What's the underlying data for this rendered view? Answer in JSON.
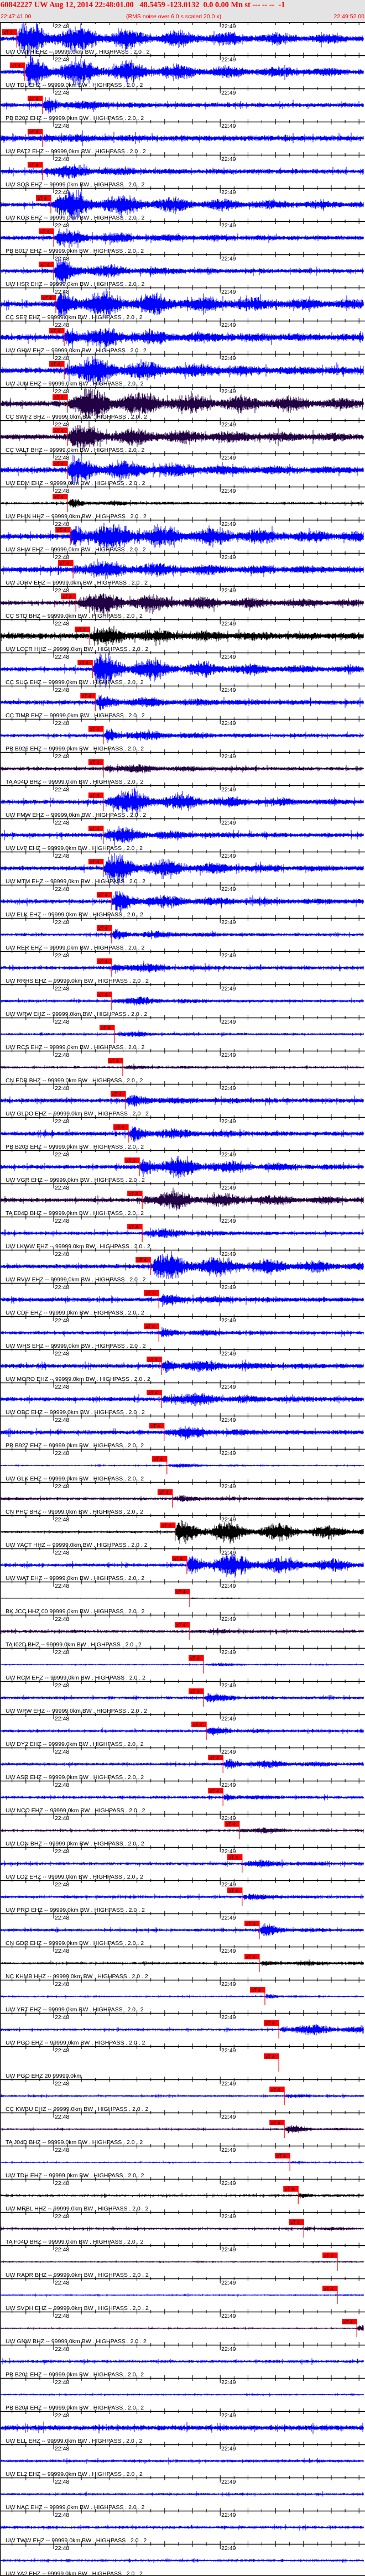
{
  "header": {
    "title": "60842227 UW Aug 12, 2014 22:48:01.00   48.5459 -123.0132  0.0 0.00 Mn st --- -- --  -1",
    "start_time": "22:47:41.00",
    "note": "(RMS noise over 6.0 s scaled 20.0 x)",
    "end_time": "22:49:52.00"
  },
  "colors": {
    "header_bg": "#e4e4e4",
    "title": "#ff0000",
    "pick": "#ff0000",
    "blue": "#0000ff",
    "purple": "#220044",
    "black": "#000000"
  },
  "chart_data": {
    "type": "seismogram record section",
    "x_range": [
      "22:47:41.00",
      "22:49:52.00"
    ],
    "time_ticks": [
      "22:48",
      "22:49"
    ],
    "pick_label": "xT 4",
    "traces": [
      {
        "label": "UW UWFH EHZ -- 99999.0km BW . HIGHPASS . 2.0 . 2",
        "color": "blue",
        "pick": "22:47:46.7",
        "noise": 0.15,
        "event": 1.0,
        "dur": 70
      },
      {
        "label": "UW TDL EHZ -- 99999.0km BW . HIGHPASS . 2.0 . 2",
        "color": "blue",
        "pick": "22:47:49.6",
        "noise": 0.15,
        "event": 1.0,
        "dur": 60
      },
      {
        "label": "PB B202 EHZ -- 99999.0km BW . HIGHPASS . 2.0 . 2",
        "color": "blue",
        "pick": "22:47:56.0",
        "noise": 0.15,
        "event": 0.6,
        "dur": 15
      },
      {
        "label": "UW PAT2 EHZ -- 99999.0km BW . HIGHPASS . 2.0 . 2",
        "color": "blue",
        "pick": "22:47:56.0",
        "noise": 0.2,
        "event": 0.2,
        "dur": 20
      },
      {
        "label": "UW SQS EHZ -- 99999.0km BW . HIGHPASS . 2.0 . 2",
        "color": "blue",
        "pick": "22:47:56.0",
        "noise": 0.15,
        "event": 0.6,
        "dur": 20
      },
      {
        "label": "UW KOS EHZ -- 99999.0km BW . HIGHPASS . 2.0 . 2",
        "color": "blue",
        "pick": "22:47:59.0",
        "noise": 0.15,
        "event": 1.0,
        "dur": 50
      },
      {
        "label": "PB B017 EHZ -- 99999.0km BW . HIGHPASS . 2.0 . 2",
        "color": "blue",
        "pick": "22:48:00.0",
        "noise": 0.15,
        "event": 0.5,
        "dur": 30
      },
      {
        "label": "UW HSR EHZ -- 99999.0km BW . HIGHPASS . 2.0 . 2",
        "color": "blue",
        "pick": "22:48:00.0",
        "noise": 0.15,
        "event": 0.8,
        "dur": 20
      },
      {
        "label": "CC SEP EHZ -- 99999.0km BW . HIGHPASS . 2.0 . 2",
        "color": "blue",
        "pick": "22:48:00.8",
        "noise": 0.2,
        "event": 1.0,
        "dur": 60
      },
      {
        "label": "UW GHW EHZ -- 99999.0km BW . HIGHPASS . 2.0 . 2",
        "color": "blue",
        "pick": "22:48:03.8",
        "noise": 0.2,
        "event": 0.7,
        "dur": 40
      },
      {
        "label": "UW JUN EHZ -- 99999.0km BW . HIGHPASS . 2.0 . 2",
        "color": "blue",
        "pick": "22:48:03.8",
        "noise": 0.2,
        "event": 1.0,
        "dur": 40
      },
      {
        "label": "CC SWF2 BHZ -- 99999.0km BW . HIGHPASS . 2.0 . 2",
        "color": "purple",
        "pick": "22:48:05.0",
        "noise": 0.2,
        "event": 1.0,
        "dur": 70
      },
      {
        "label": "CC VALT BHZ -- 99999.0km BW . HIGHPASS . 2.0 . 2",
        "color": "purple",
        "pick": "22:48:05.0",
        "noise": 0.2,
        "event": 0.7,
        "dur": 50
      },
      {
        "label": "UW EDM EHZ -- 99999.0km BW . HIGHPASS . 2.0 . 2",
        "color": "blue",
        "pick": "22:48:05.0",
        "noise": 0.2,
        "event": 0.8,
        "dur": 40
      },
      {
        "label": "UW PHIN HHZ -- 99999.0km BW . HIGHPASS . 2.0 . 2",
        "color": "black",
        "pick": "22:48:05.0",
        "noise": 0.08,
        "event": 0.3,
        "dur": 15
      },
      {
        "label": "UW SHW EHZ -- 99999.0km BW . HIGHPASS . 2.0 . 2",
        "color": "blue",
        "pick": "22:48:06.0",
        "noise": 0.2,
        "event": 1.0,
        "dur": 60
      },
      {
        "label": "UW JORV EHZ -- 99999.0km BW . HIGHPASS . 2.0 . 2",
        "color": "blue",
        "pick": "22:48:07.0",
        "noise": 0.2,
        "event": 0.6,
        "dur": 40
      },
      {
        "label": "CC STD BHZ -- 99999.0km BW . HIGHPASS . 2.0 . 2",
        "color": "purple",
        "pick": "22:48:08.0",
        "noise": 0.15,
        "event": 0.8,
        "dur": 50
      },
      {
        "label": "UW LCCR HHZ -- 99999.0km BW . HIGHPASS . 2.0 . 2",
        "color": "black",
        "pick": "22:48:13.0",
        "noise": 0.2,
        "event": 0.5,
        "dur": 40
      },
      {
        "label": "CC SUG EHZ -- 99999.0km BW . HIGHPASS . 2.0 . 2",
        "color": "blue",
        "pick": "22:48:14.0",
        "noise": 0.15,
        "event": 1.0,
        "dur": 40
      },
      {
        "label": "CC TIMB EHZ -- 99999.0km BW . HIGHPASS . 2.0 . 2",
        "color": "blue",
        "pick": "22:48:15.0",
        "noise": 0.15,
        "event": 0.4,
        "dur": 30
      },
      {
        "label": "PB B926 EHZ -- 99999.0km BW . HIGHPASS . 2.0 . 2",
        "color": "blue",
        "pick": "22:48:17.9",
        "noise": 0.12,
        "event": 0.5,
        "dur": 20
      },
      {
        "label": "TA A04D BHZ -- 99999.0km BW . HIGHPASS . 2.0 . 2",
        "color": "purple",
        "pick": "22:48:17.9",
        "noise": 0.12,
        "event": 0.4,
        "dur": 20
      },
      {
        "label": "UW FMW EHZ -- 99999.0km BW . HIGHPASS . 2.0 . 2",
        "color": "blue",
        "pick": "22:48:17.9",
        "noise": 0.15,
        "event": 1.0,
        "dur": 30
      },
      {
        "label": "UW LVP EHZ -- 99999.0km BW . HIGHPASS . 2.0 . 2",
        "color": "blue",
        "pick": "22:48:17.9",
        "noise": 0.15,
        "event": 0.6,
        "dur": 20
      },
      {
        "label": "UW MTM EHZ -- 99999.0km BW . HIGHPASS . 2.0 . 2",
        "color": "blue",
        "pick": "22:48:17.9",
        "noise": 0.15,
        "event": 1.0,
        "dur": 30
      },
      {
        "label": "UW ELK EHZ -- 99999.0km BW . HIGHPASS . 2.0 . 2",
        "color": "blue",
        "pick": "22:48:20.9",
        "noise": 0.15,
        "event": 0.6,
        "dur": 30
      },
      {
        "label": "UW RER EHZ -- 99999.0km BW . HIGHPASS . 2.0 . 2",
        "color": "blue",
        "pick": "22:48:20.9",
        "noise": 0.1,
        "event": 0.4,
        "dur": 20
      },
      {
        "label": "UW RRHS EHZ -- 99999.0km BW . HIGHPASS . 2.0 . 2",
        "color": "blue",
        "pick": "22:48:20.9",
        "noise": 0.12,
        "event": 0.5,
        "dur": 15
      },
      {
        "label": "UW WRW EHZ -- 99999.0km BW . HIGHPASS . 2.0 . 2",
        "color": "blue",
        "pick": "22:48:20.9",
        "noise": 0.1,
        "event": 0.4,
        "dur": 15
      },
      {
        "label": "UW RCS EHZ -- 99999.0km BW . HIGHPASS . 2.0 . 2",
        "color": "blue",
        "pick": "22:48:21.9",
        "noise": 0.08,
        "event": 0.2,
        "dur": 15
      },
      {
        "label": "CN EDB BHZ -- 99999.0km BW . HIGHPASS . 2.0 . 2",
        "color": "purple",
        "pick": "22:48:24.9",
        "noise": 0.08,
        "event": 0.1,
        "dur": 15
      },
      {
        "label": "UW GLDO EHZ -- 99999.0km BW . HIGHPASS . 2.0 . 2",
        "color": "blue",
        "pick": "22:48:25.9",
        "noise": 0.15,
        "event": 0.3,
        "dur": 20
      },
      {
        "label": "PB B203 EHZ -- 99999.0km BW . HIGHPASS . 2.0 . 2",
        "color": "blue",
        "pick": "22:48:26.9",
        "noise": 0.15,
        "event": 0.5,
        "dur": 20
      },
      {
        "label": "UW VGR EHZ -- 99999.0km BW . HIGHPASS . 2.0 . 2",
        "color": "blue",
        "pick": "22:48:30.9",
        "noise": 0.15,
        "event": 1.0,
        "dur": 25
      },
      {
        "label": "TA E04D BHZ -- 99999.0km BW . HIGHPASS . 2.0 . 2",
        "color": "purple",
        "pick": "22:48:31.9",
        "noise": 0.15,
        "event": 0.7,
        "dur": 40
      },
      {
        "label": "UW LKWW EHZ -- 99999.0km BW . HIGHPASS . 2.0 . 2",
        "color": "blue",
        "pick": "22:48:31.9",
        "noise": 0.12,
        "event": 0.4,
        "dur": 15
      },
      {
        "label": "UW RVW EHZ -- 99999.0km BW . HIGHPASS . 2.0 . 2",
        "color": "blue",
        "pick": "22:48:34.9",
        "noise": 0.15,
        "event": 0.9,
        "dur": 50
      },
      {
        "label": "UW CDF EHZ -- 99999.0km BW . HIGHPASS . 2.0 . 2",
        "color": "blue",
        "pick": "22:48:37.9",
        "noise": 0.15,
        "event": 0.3,
        "dur": 20
      },
      {
        "label": "UW WHS EHZ -- 99999.0km BW . HIGHPASS . 2.0 . 2",
        "color": "blue",
        "pick": "22:48:37.9",
        "noise": 0.12,
        "event": 0.3,
        "dur": 15
      },
      {
        "label": "UW MORO EHZ -- 99999.0km BW . HIGHPASS . 2.0 . 2",
        "color": "blue",
        "pick": "22:48:38.9",
        "noise": 0.15,
        "event": 0.5,
        "dur": 25
      },
      {
        "label": "UW OBC EHZ -- 99999.0km BW . HIGHPASS . 2.0 . 2",
        "color": "blue",
        "pick": "22:48:38.9",
        "noise": 0.15,
        "event": 0.5,
        "dur": 25
      },
      {
        "label": "PB B927 EHZ -- 99999.0km BW . HIGHPASS . 2.0 . 2",
        "color": "blue",
        "pick": "22:48:39.8",
        "noise": 0.15,
        "event": 0.5,
        "dur": 15
      },
      {
        "label": "UW GLK EHZ -- 99999.0km BW . HIGHPASS . 2.0 . 2",
        "color": "blue",
        "pick": "22:48:40.8",
        "noise": 0.05,
        "event": 0.15,
        "dur": 15
      },
      {
        "label": "CN PHC BHZ -- 99999.0km BW . HIGHPASS . 2.0 . 2",
        "color": "purple",
        "pick": "22:48:42.8",
        "noise": 0.1,
        "event": 0.15,
        "dur": 20
      },
      {
        "label": "UW YACT HHZ -- 99999.0km BW . HIGHPASS . 2.0 . 2",
        "color": "black",
        "pick": "22:48:43.8",
        "noise": 0.08,
        "event": 0.8,
        "dur": 70
      },
      {
        "label": "UW WAT EHZ -- 99999.0km BW . HIGHPASS . 2.0 . 2",
        "color": "blue",
        "pick": "22:48:48.0",
        "noise": 0.12,
        "event": 0.9,
        "dur": 50
      },
      {
        "label": "BK JCC HHZ 00 99999.0km BW . HIGHPASS . 2.0 . 2",
        "color": "black",
        "pick": "22:48:49.0",
        "noise": 0.02,
        "event": 0.1,
        "dur": 10
      },
      {
        "label": "TA I02D BHZ -- 99999.0km BW . HIGHPASS . 2.0 . 2",
        "color": "purple",
        "pick": "22:48:49.0",
        "noise": 0.1,
        "event": 0.1,
        "dur": 15
      },
      {
        "label": "UW RCM EHZ -- 99999.0km BW . HIGHPASS . 2.0 . 2",
        "color": "blue",
        "pick": "22:48:54.0",
        "noise": 0.05,
        "event": 0.1,
        "dur": 15
      },
      {
        "label": "UW WPW EHZ -- 99999.0km BW . HIGHPASS . 2.0 . 2",
        "color": "blue",
        "pick": "22:48:54.0",
        "noise": 0.1,
        "event": 0.3,
        "dur": 10
      },
      {
        "label": "UW DY2 EHZ -- 99999.0km BW . HIGHPASS . 2.0 . 2",
        "color": "blue",
        "pick": "22:48:55.0",
        "noise": 0.1,
        "event": 0.3,
        "dur": 10
      },
      {
        "label": "UW ASR EHZ -- 99999.0km BW . HIGHPASS . 2.0 . 2",
        "color": "blue",
        "pick": "22:49:01.0",
        "noise": 0.1,
        "event": 0.3,
        "dur": 30
      },
      {
        "label": "UW NCO EHZ -- 99999.0km BW . HIGHPASS . 2.0 . 2",
        "color": "blue",
        "pick": "22:49:01.0",
        "noise": 0.1,
        "event": 0.3,
        "dur": 10
      },
      {
        "label": "UW LON BHZ -- 99999.0km BW . HIGHPASS . 2.0 . 2",
        "color": "purple",
        "pick": "22:49:06.9",
        "noise": 0.08,
        "event": 0.35,
        "dur": 10
      },
      {
        "label": "UW LO2 EHZ -- 99999.0km BW . HIGHPASS . 2.0 . 2",
        "color": "blue",
        "pick": "22:49:07.9",
        "noise": 0.1,
        "event": 0.3,
        "dur": 15
      },
      {
        "label": "UW PRO EHZ -- 99999.0km BW . HIGHPASS . 2.0 . 2",
        "color": "blue",
        "pick": "22:49:07.9",
        "noise": 0.1,
        "event": 0.2,
        "dur": 10
      },
      {
        "label": "CN GDR EHZ -- 99999.0km BW . HIGHPASS . 2.0 . 2",
        "color": "blue",
        "pick": "22:49:14.1",
        "noise": 0.1,
        "event": 0.4,
        "dur": 10
      },
      {
        "label": "NC KHMB HHZ -- 99999.0km BW . HIGHPASS . 2.0 . 2",
        "color": "black",
        "pick": "22:49:14.1",
        "noise": 0.08,
        "event": 0.15,
        "dur": 30
      },
      {
        "label": "UW YRT EHZ -- 99999.0km BW . HIGHPASS . 2.0 . 2",
        "color": "blue",
        "pick": "22:49:16.1",
        "noise": 0.06,
        "event": 0.3,
        "dur": 5
      },
      {
        "label": "UW PGO EHZ -- 99999.0km BW . HIGHPASS . 2.0 . 2",
        "color": "blue",
        "pick": "22:49:21.1",
        "noise": 0.08,
        "event": 0.4,
        "dur": 40
      },
      {
        "label": "UW PGO EHZ 20 99999.0km",
        "color": "none",
        "pick": "22:49:21.1",
        "noise": 0,
        "event": 0,
        "dur": 0
      },
      {
        "label": "CC KWBU EHZ -- 99999.0km BW . HIGHPASS . 2.0 . 2",
        "color": "blue",
        "pick": "22:49:23.1",
        "noise": 0.07,
        "event": 0.1,
        "dur": 10
      },
      {
        "label": "TA J04D BHZ -- 99999.0km BW . HIGHPASS . 2.0 . 2",
        "color": "purple",
        "pick": "22:49:23.1",
        "noise": 0.06,
        "event": 0.3,
        "dur": 10
      },
      {
        "label": "UW TDH EHZ -- 99999.0km BW . HIGHPASS . 2.0 . 2",
        "color": "blue",
        "pick": "22:49:25.1",
        "noise": 0.05,
        "event": 0.05,
        "dur": 10
      },
      {
        "label": "UW MRBL HHZ -- 99999.0km BW . HIGHPASS . 2.0 . 2",
        "color": "black",
        "pick": "22:49:28.1",
        "noise": 0.08,
        "event": 0.15,
        "dur": 10
      },
      {
        "label": "TA F04D BHZ -- 99999.0km BW . HIGHPASS . 2.0 . 2",
        "color": "purple",
        "pick": "22:49:30.1",
        "noise": 0.08,
        "event": 0.2,
        "dur": 8
      },
      {
        "label": "UW RADR BHZ -- 99999.0km BW . HIGHPASS . 2.0 . 2",
        "color": "purple",
        "pick": "22:49:42.2",
        "noise": 0.05,
        "event": 0.05,
        "dur": 5
      },
      {
        "label": "UW SVOH EHZ -- 99999.0km BW . HIGHPASS . 2.0 . 2",
        "color": "blue",
        "pick": "22:49:42.2",
        "noise": 0.05,
        "event": 0.05,
        "dur": 5
      },
      {
        "label": "UW GNW BHZ -- 99999.0km BW . HIGHPASS . 2.0 . 2",
        "color": "purple",
        "pick": "22:49:49.2",
        "noise": 0.05,
        "event": 0.4,
        "dur": 3
      },
      {
        "label": "PB B201 EHZ -- 99999.0km BW . HIGHPASS . 2.0 . 2",
        "color": "blue",
        "pick": null,
        "noise": 0.1,
        "event": 0,
        "dur": 0
      },
      {
        "label": "PB B204 EHZ -- 99999.0km BW . HIGHPASS . 2.0 . 2",
        "color": "blue",
        "pick": null,
        "noise": 0.06,
        "event": 0,
        "dur": 0
      },
      {
        "label": "UW ELL EHZ -- 99999.0km BW . HIGHPASS . 2.0 . 2",
        "color": "blue",
        "pick": null,
        "noise": 0.18,
        "event": 0,
        "dur": 0
      },
      {
        "label": "UW EL2 EHZ -- 99999.0km BW . HIGHPASS . 2.0 . 2",
        "color": "blue",
        "pick": null,
        "noise": 0.1,
        "event": 0,
        "dur": 0
      },
      {
        "label": "UW NAC EHZ -- 99999.0km BW . HIGHPASS . 2.0 . 2",
        "color": "blue",
        "pick": null,
        "noise": 0.08,
        "event": 0,
        "dur": 0
      },
      {
        "label": "UW TWW EHZ -- 99999.0km BW . HIGHPASS . 2.0 . 2",
        "color": "blue",
        "pick": null,
        "noise": 0.1,
        "event": 0,
        "dur": 0
      },
      {
        "label": "UW YA2 EHZ -- 99999.0km BW . HIGHPASS . 2.0 . 2",
        "color": "blue",
        "pick": null,
        "noise": 0.08,
        "event": 0,
        "dur": 0
      }
    ]
  }
}
